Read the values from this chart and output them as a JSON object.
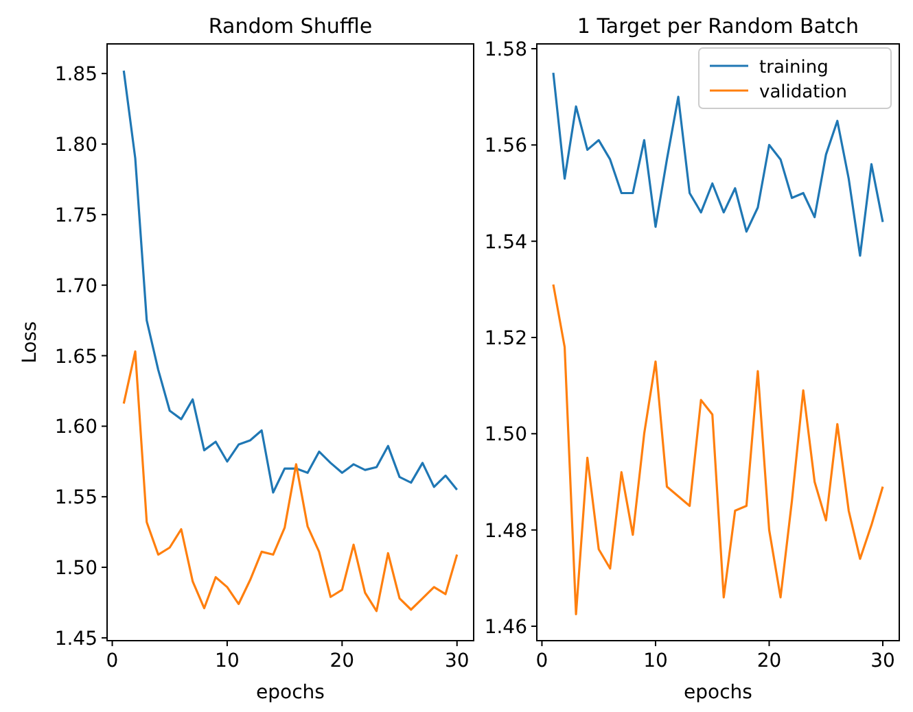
{
  "chart_data": [
    {
      "type": "line",
      "title": "Random Shuffle",
      "xlabel": "epochs",
      "ylabel": "Loss",
      "x": [
        1,
        2,
        3,
        4,
        5,
        6,
        7,
        8,
        9,
        10,
        11,
        12,
        13,
        14,
        15,
        16,
        17,
        18,
        19,
        20,
        21,
        22,
        23,
        24,
        25,
        26,
        27,
        28,
        29,
        30
      ],
      "xlim": [
        -0.45,
        31.45
      ],
      "xticks": [
        0,
        10,
        20,
        30
      ],
      "ylim": [
        1.448,
        1.871
      ],
      "yticks": [
        {
          "value": 1.45,
          "label": "1.45"
        },
        {
          "value": 1.5,
          "label": "1.50"
        },
        {
          "value": 1.55,
          "label": "1.55"
        },
        {
          "value": 1.6,
          "label": "1.60"
        },
        {
          "value": 1.65,
          "label": "1.65"
        },
        {
          "value": 1.7,
          "label": "1.70"
        },
        {
          "value": 1.75,
          "label": "1.75"
        },
        {
          "value": 1.8,
          "label": "1.80"
        },
        {
          "value": 1.85,
          "label": "1.85"
        }
      ],
      "grid": false,
      "legend": false,
      "series": [
        {
          "color": "#1f77b4",
          "values": [
            1.852,
            1.79,
            1.675,
            1.64,
            1.611,
            1.605,
            1.619,
            1.583,
            1.589,
            1.575,
            1.587,
            1.59,
            1.597,
            1.553,
            1.57,
            1.57,
            1.567,
            1.582,
            1.574,
            1.567,
            1.573,
            1.569,
            1.571,
            1.586,
            1.564,
            1.56,
            1.574,
            1.557,
            1.565,
            1.555
          ]
        },
        {
          "color": "#ff7f0e",
          "values": [
            1.616,
            1.653,
            1.532,
            1.509,
            1.514,
            1.527,
            1.49,
            1.471,
            1.493,
            1.486,
            1.474,
            1.491,
            1.511,
            1.509,
            1.528,
            1.573,
            1.529,
            1.511,
            1.479,
            1.484,
            1.516,
            1.482,
            1.469,
            1.51,
            1.478,
            1.47,
            1.478,
            1.486,
            1.481,
            1.509
          ]
        }
      ]
    },
    {
      "type": "line",
      "title": "1 Target per Random Batch",
      "xlabel": "epochs",
      "x": [
        1,
        2,
        3,
        4,
        5,
        6,
        7,
        8,
        9,
        10,
        11,
        12,
        13,
        14,
        15,
        16,
        17,
        18,
        19,
        20,
        21,
        22,
        23,
        24,
        25,
        26,
        27,
        28,
        29,
        30
      ],
      "xlim": [
        -0.45,
        31.45
      ],
      "xticks": [
        0,
        10,
        20,
        30
      ],
      "ylim": [
        1.457,
        1.581
      ],
      "yticks": [
        {
          "value": 1.46,
          "label": "1.46"
        },
        {
          "value": 1.48,
          "label": "1.48"
        },
        {
          "value": 1.5,
          "label": "1.50"
        },
        {
          "value": 1.52,
          "label": "1.52"
        },
        {
          "value": 1.54,
          "label": "1.54"
        },
        {
          "value": 1.56,
          "label": "1.56"
        },
        {
          "value": 1.58,
          "label": "1.58"
        }
      ],
      "grid": false,
      "legend": "top right",
      "series": [
        {
          "name": "training",
          "color": "#1f77b4",
          "values": [
            1.575,
            1.553,
            1.568,
            1.559,
            1.561,
            1.557,
            1.55,
            1.55,
            1.561,
            1.543,
            1.557,
            1.57,
            1.55,
            1.546,
            1.552,
            1.546,
            1.551,
            1.542,
            1.547,
            1.56,
            1.557,
            1.549,
            1.55,
            1.545,
            1.558,
            1.565,
            1.553,
            1.537,
            1.556,
            1.544
          ]
        },
        {
          "name": "validation",
          "color": "#ff7f0e",
          "values": [
            1.531,
            1.518,
            1.4625,
            1.495,
            1.476,
            1.472,
            1.492,
            1.479,
            1.5,
            1.515,
            1.489,
            1.487,
            1.485,
            1.507,
            1.504,
            1.466,
            1.484,
            1.485,
            1.513,
            1.48,
            1.466,
            1.486,
            1.509,
            1.49,
            1.482,
            1.502,
            1.484,
            1.474,
            1.481,
            1.489
          ]
        }
      ]
    }
  ]
}
